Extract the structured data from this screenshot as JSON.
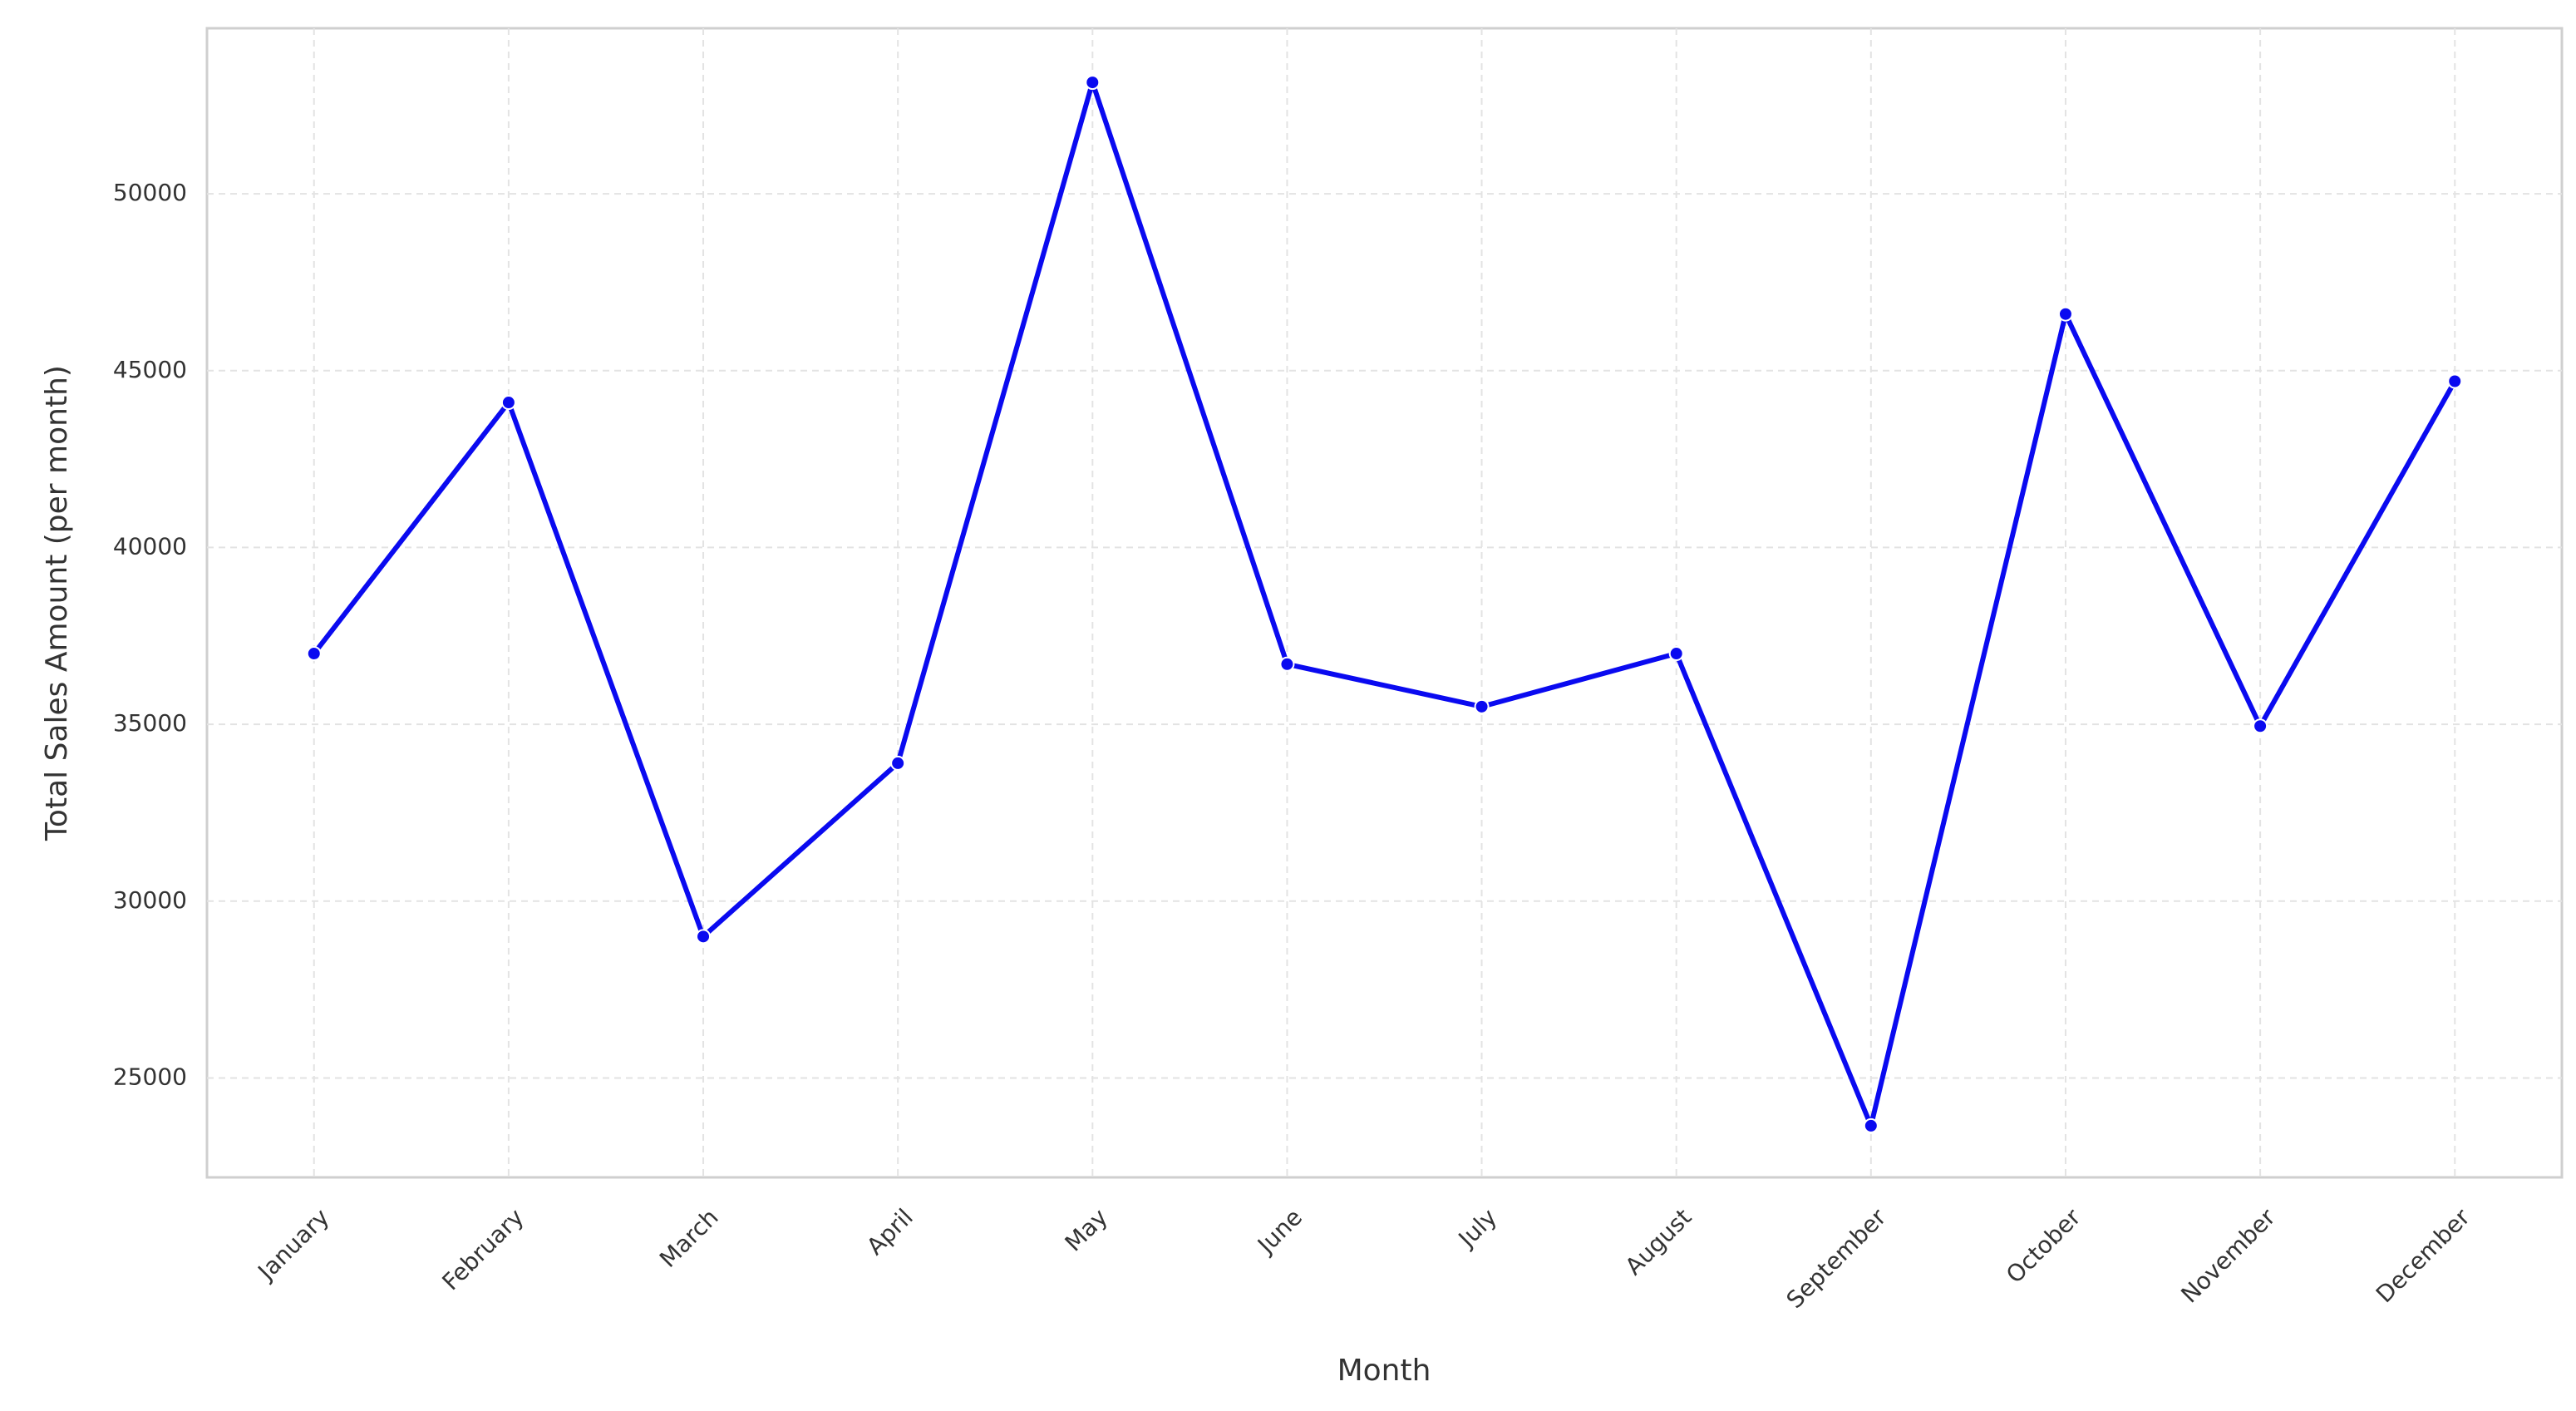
{
  "chart_data": {
    "type": "line",
    "x_label": "Month",
    "y_label": "Total Sales Amount (per month)",
    "categories": [
      "January",
      "February",
      "March",
      "April",
      "May",
      "June",
      "July",
      "August",
      "September",
      "October",
      "November",
      "December"
    ],
    "series": [
      {
        "name": "Total Sales Amount",
        "color": "#0a0af0",
        "values": [
          37000,
          44100,
          29000,
          33900,
          53150,
          36700,
          35500,
          37000,
          23650,
          46600,
          34950,
          44700
        ]
      }
    ],
    "ylim": [
      22190,
      54680
    ],
    "yticks": [
      25000,
      30000,
      35000,
      40000,
      45000,
      50000
    ],
    "grid": true
  }
}
